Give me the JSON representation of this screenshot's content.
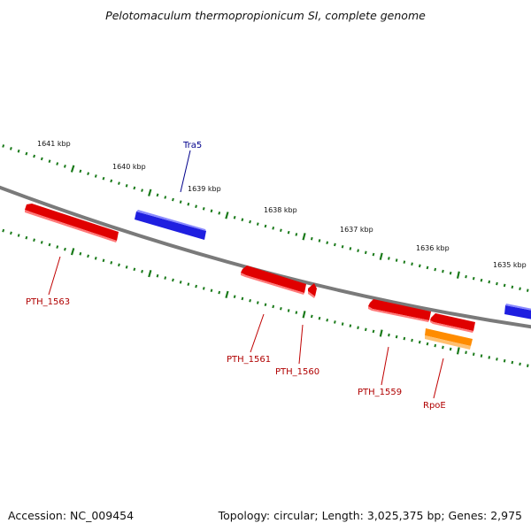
{
  "title": "Pelotomaculum thermopropionicum SI, complete genome",
  "accession": "Accession: NC_009454",
  "summary": "Topology: circular; Length: 3,025,375 bp; Genes: 2,975",
  "colors": {
    "backbone": "#7a7a7a",
    "tick": "#1a7a1a",
    "forward_gene": "#1f1fe0",
    "reverse_gene": "#e00000",
    "rna_gene": "#ff8c00",
    "forward_label": "#00008b",
    "reverse_label": "#b00000"
  },
  "ruler_labels": [
    "1641 kbp",
    "1640 kbp",
    "1639 kbp",
    "1638 kbp",
    "1637 kbp",
    "1636 kbp",
    "1635 kbp"
  ],
  "genes": [
    {
      "name": "Tra5",
      "strand": "forward",
      "color": "#1f1fe0"
    },
    {
      "name": "PTH_1563",
      "strand": "reverse",
      "color": "#e00000"
    },
    {
      "name": "PTH_1561",
      "strand": "reverse",
      "color": "#e00000"
    },
    {
      "name": "PTH_1560",
      "strand": "reverse",
      "color": "#e00000"
    },
    {
      "name": "PTH_1559",
      "strand": "reverse",
      "color": "#e00000"
    },
    {
      "name": "RpoE",
      "strand": "reverse",
      "color": "#ff8c00"
    },
    {
      "name": "",
      "strand": "reverse",
      "color": "#e00000"
    },
    {
      "name": "",
      "strand": "forward",
      "color": "#1f1fe0"
    }
  ]
}
